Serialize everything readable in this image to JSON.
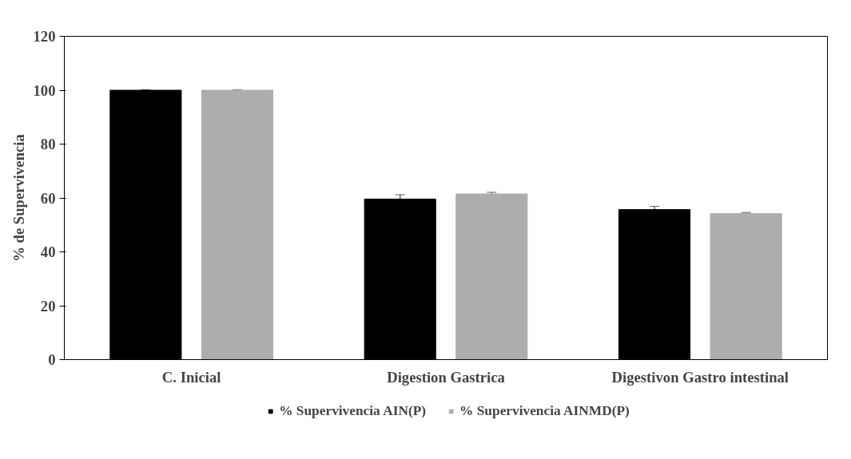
{
  "chart_data": {
    "type": "bar",
    "ylabel": "% de Supervivencia",
    "categories": [
      "C. Inicial",
      "Digestion Gastrica",
      "Digestivon Gastro intestinal"
    ],
    "series": [
      {
        "name": "% Supervivencia AIN(P)",
        "color": "#000000",
        "values": [
          100,
          59.6,
          55.7
        ],
        "errors": [
          0.2,
          1.6,
          1.2
        ]
      },
      {
        "name": "% Supervivencia AINMD(P)",
        "color": "#aeadab",
        "values": [
          100,
          61.5,
          54.2
        ],
        "errors": [
          0.2,
          0.6,
          0.4
        ]
      }
    ],
    "ylim": [
      0,
      120
    ],
    "yticks": [
      0,
      20,
      40,
      60,
      80,
      100,
      120
    ],
    "grid": false,
    "legend": "bottom"
  }
}
